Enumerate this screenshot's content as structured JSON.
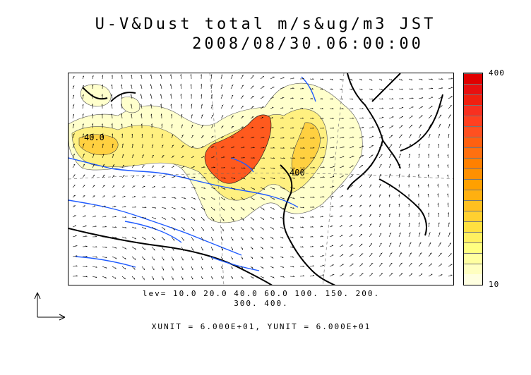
{
  "title": {
    "line1": "U-V&Dust total m/s&ug/m3 JST",
    "line2": "2008/08/30.06:00:00"
  },
  "colorbar": {
    "max_label": "400",
    "min_label": "10",
    "colors": [
      "#FFFFE0",
      "#FFFFC0",
      "#FFFFA0",
      "#FFFF80",
      "#FFF060",
      "#FFE040",
      "#FFD030",
      "#FFC020",
      "#FFB010",
      "#FFA000",
      "#FF9000",
      "#FF8000",
      "#FF7010",
      "#FF6010",
      "#FF5020",
      "#FF4020",
      "#F83020",
      "#F02010",
      "#E81010",
      "#E00000"
    ]
  },
  "map": {
    "contour_labels": [
      "40.0",
      "400"
    ],
    "coastline_color": "#000000",
    "river_color": "#1f5bff",
    "dust_colors": {
      "light": "#FFFFCC",
      "medium": "#FFF080",
      "dense": "#FFD040",
      "heavy": "#FF5A1E"
    }
  },
  "caption": {
    "levels_line1": "lev= 10.0 20.0 40.0 60.0 100. 150. 200.",
    "levels_line2": "300. 400.",
    "units": "XUNIT = 6.000E+01, YUNIT = 6.000E+01"
  },
  "reference_vector": {
    "icon": "reference-vector-arrows"
  }
}
